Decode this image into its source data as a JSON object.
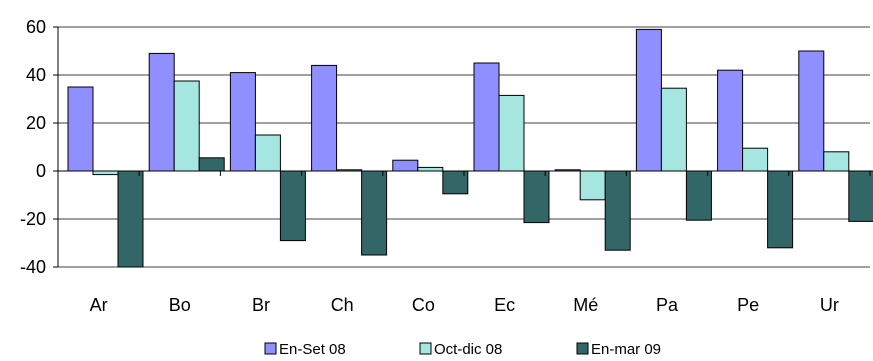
{
  "chart_data": {
    "type": "bar",
    "title": "",
    "xlabel": "",
    "ylabel": "",
    "categories": [
      "Ar",
      "Bo",
      "Br",
      "Ch",
      "Co",
      "Ec",
      "Mé",
      "Pa",
      "Pe",
      "Ur"
    ],
    "series": [
      {
        "name": "En-Set 08",
        "color": "#8f8fff",
        "values": [
          35,
          49,
          41,
          44,
          4.5,
          45,
          0.5,
          59,
          42,
          50
        ]
      },
      {
        "name": "Oct-dic 08",
        "color": "#a6e6e0",
        "values": [
          -1.5,
          37.5,
          15,
          0.5,
          1.5,
          31.5,
          -12,
          34.5,
          9.5,
          8
        ]
      },
      {
        "name": "En-mar 09",
        "color": "#336666",
        "values": [
          -40,
          5.5,
          -29,
          -35,
          -9.5,
          -21.5,
          -33,
          -20.5,
          -32,
          -21
        ]
      }
    ],
    "ylim": [
      -40,
      60
    ],
    "yticks": [
      -40,
      -20,
      0,
      20,
      40,
      60
    ],
    "grid": true,
    "legend": "bottom"
  }
}
